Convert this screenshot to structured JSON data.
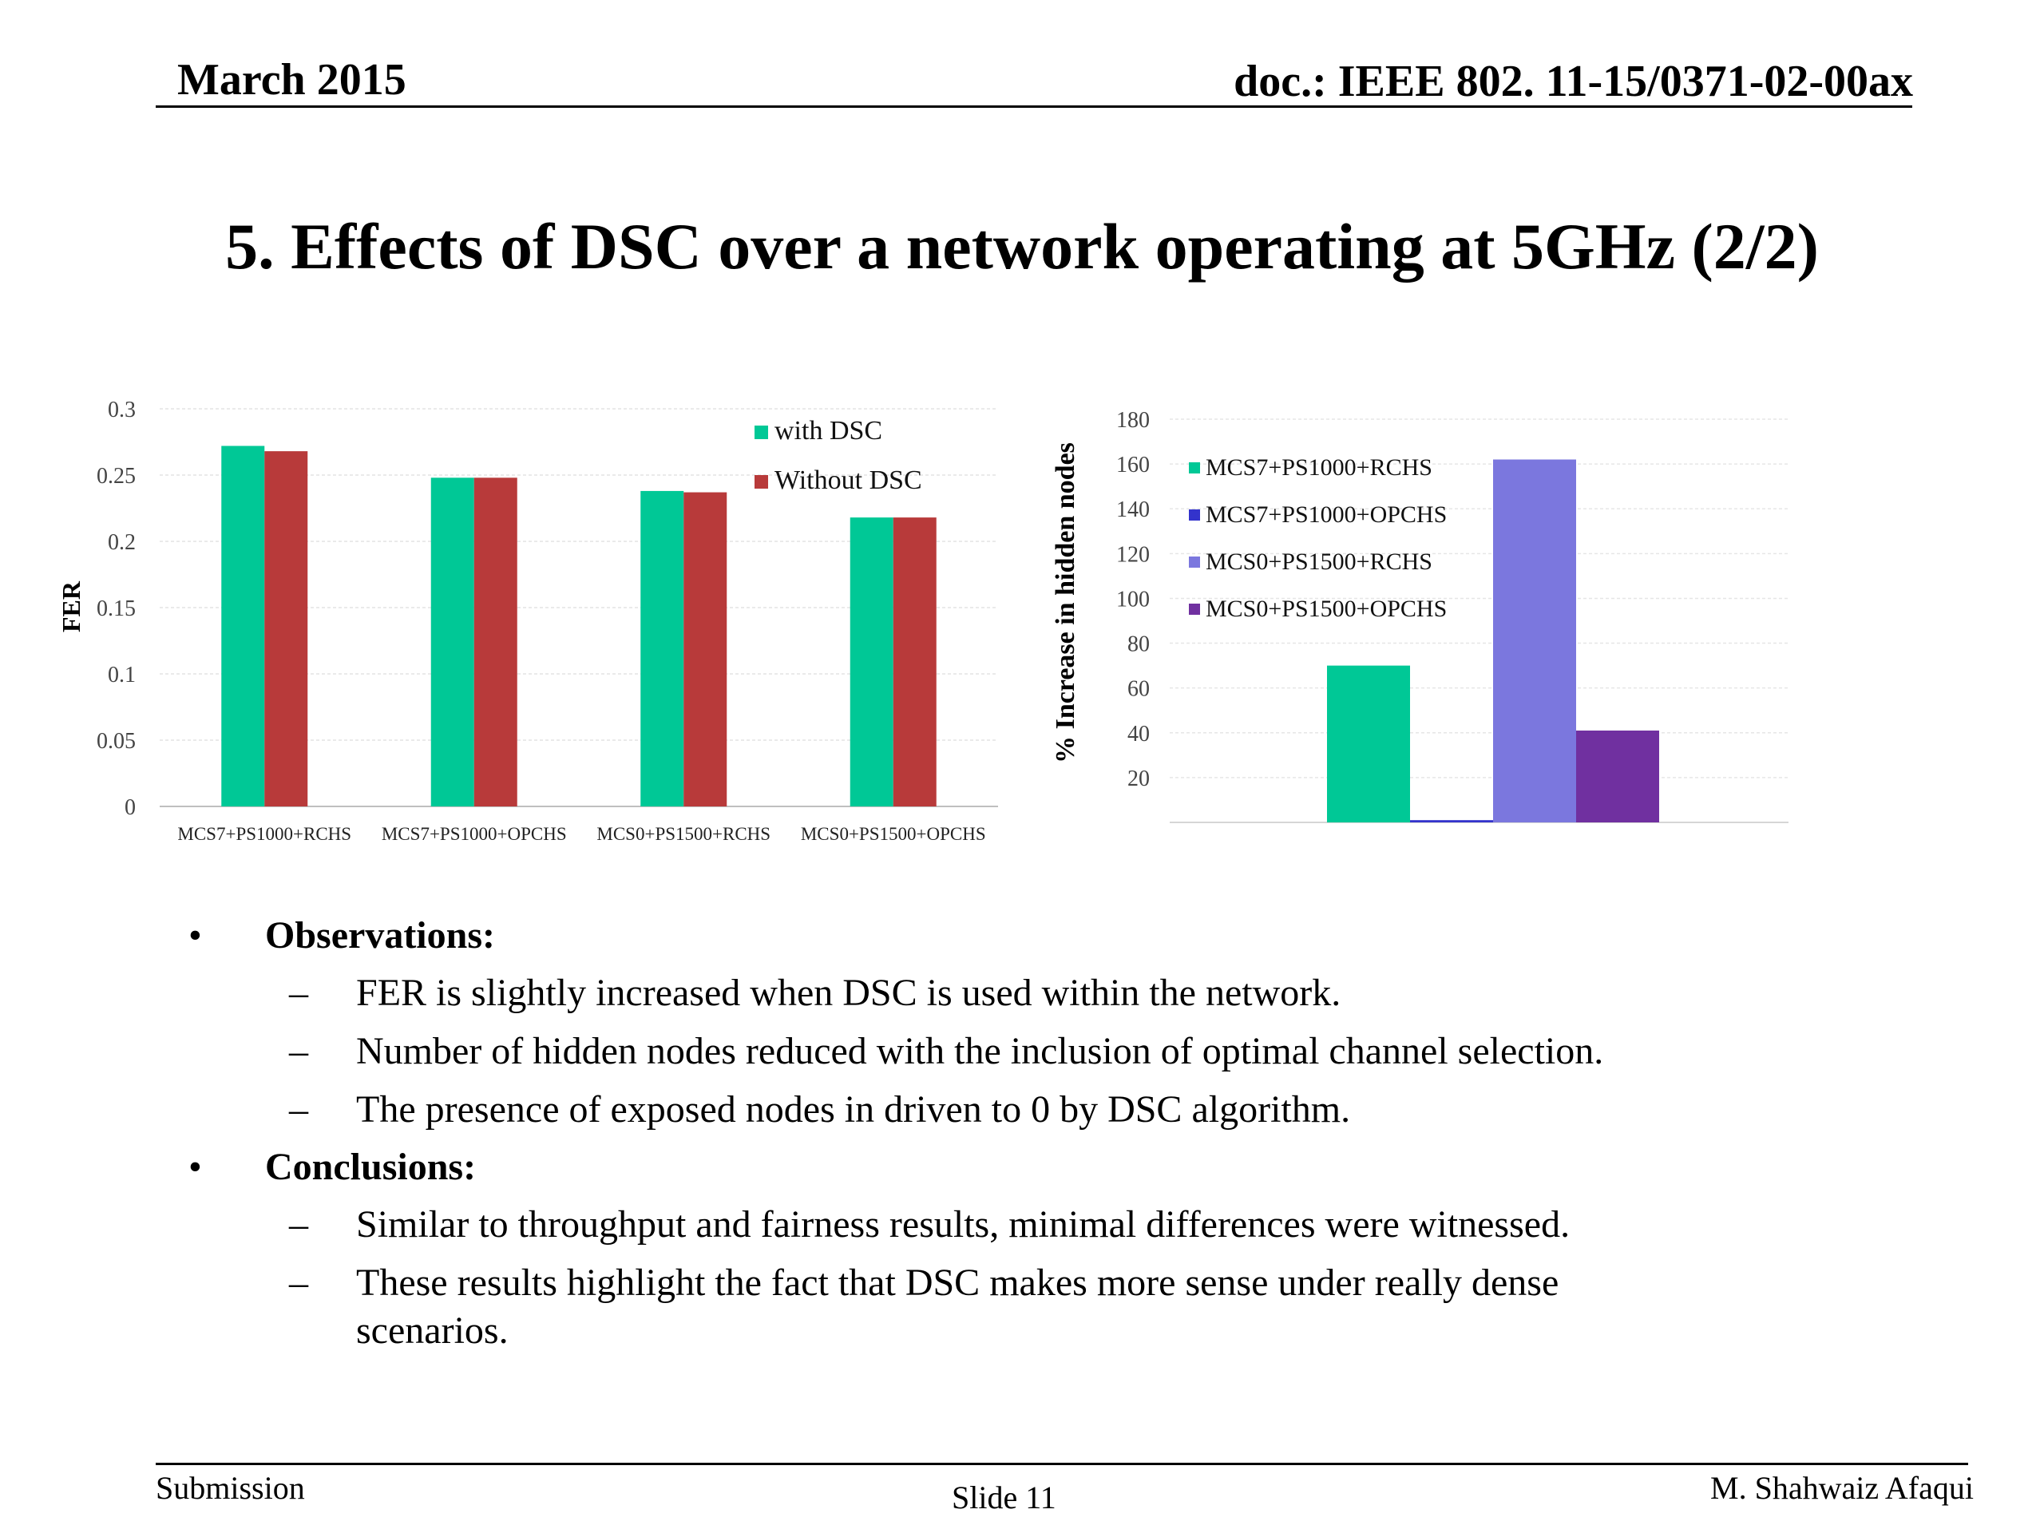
{
  "header": {
    "date": "March 2015",
    "doc": "doc.: IEEE 802. 11-15/0371-02-00ax"
  },
  "slide_title": "5. Effects of DSC over a network operating at 5GHz (2/2)",
  "bullets": {
    "observations": {
      "heading": "Observations:",
      "items": [
        "FER is slightly increased when DSC is used within the network.",
        "Number of hidden nodes reduced with the inclusion of optimal channel selection.",
        "The presence of exposed nodes in driven to 0 by DSC algorithm."
      ]
    },
    "conclusions": {
      "heading": "Conclusions:",
      "items": [
        "Similar to throughput and fairness results, minimal differences were witnessed.",
        "These results highlight the fact that DSC makes more sense under really dense",
        "scenarios."
      ]
    },
    "bullet_symbol": "•",
    "dash_symbol": "–"
  },
  "footer": {
    "left": "Submission",
    "center": "Slide 11",
    "right": "M. Shahwaiz Afaqui"
  },
  "chart_data": [
    {
      "type": "bar",
      "ylabel": "FER",
      "ylim": [
        0,
        0.3
      ],
      "yticks": [
        "0",
        "0.05",
        "0.1",
        "0.15",
        "0.2",
        "0.25",
        "0.3"
      ],
      "categories": [
        "MCS7+PS1000+RCHS",
        "MCS7+PS1000+OPCHS",
        "MCS0+PS1500+RCHS",
        "MCS0+PS1500+OPCHS"
      ],
      "series": [
        {
          "name": "with DSC",
          "color": "#00c896",
          "values": [
            0.272,
            0.248,
            0.238,
            0.218
          ]
        },
        {
          "name": "Without DSC",
          "color": "#b83a3a",
          "values": [
            0.268,
            0.248,
            0.237,
            0.218
          ]
        }
      ],
      "legend": "top-right",
      "grid": true
    },
    {
      "type": "bar",
      "ylabel": "% Increase in hidden nodes",
      "ylim": [
        0,
        180
      ],
      "yticks": [
        "",
        "20",
        "40",
        "60",
        "80",
        "100",
        "120",
        "140",
        "160",
        "180"
      ],
      "categories": [
        "MCS7+PS1000+RCHS",
        "MCS7+PS1000+OPCHS",
        "MCS0+PS1500+RCHS",
        "MCS0+PS1500+OPCHS"
      ],
      "series": [
        {
          "name": "MCS7+PS1000+RCHS",
          "color": "#00c896",
          "value": 70
        },
        {
          "name": "MCS7+PS1000+OPCHS",
          "color": "#3333cc",
          "value": 1
        },
        {
          "name": "MCS0+PS1500+RCHS",
          "color": "#7b77de",
          "value": 162
        },
        {
          "name": "MCS0+PS1500+OPCHS",
          "color": "#7030a0",
          "value": 41
        }
      ],
      "legend": "top-left",
      "grid": true
    }
  ]
}
